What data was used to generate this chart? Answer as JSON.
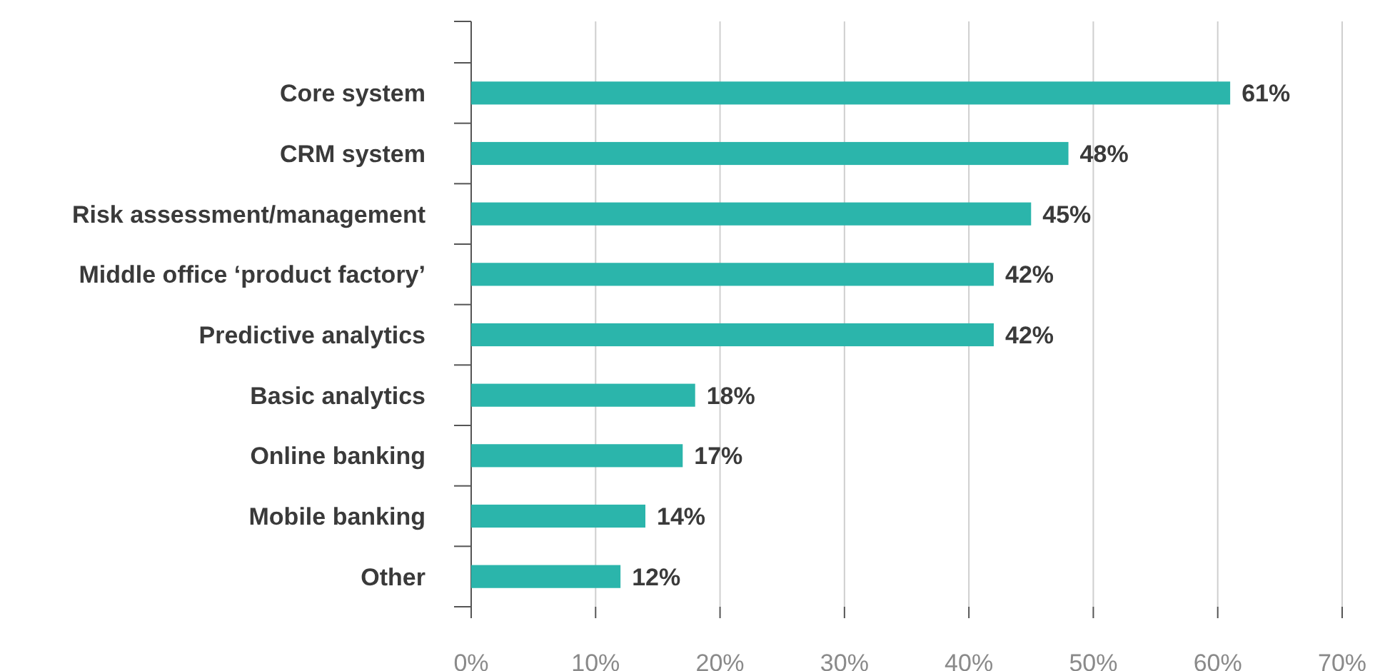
{
  "chart_data": {
    "type": "bar",
    "orientation": "horizontal",
    "categories": [
      "Core system",
      "CRM system",
      "Risk assessment/management",
      "Middle office ‘product factory’",
      "Predictive analytics",
      "Basic analytics",
      "Online banking",
      "Mobile banking",
      "Other"
    ],
    "values": [
      61,
      48,
      45,
      42,
      42,
      18,
      17,
      14,
      12
    ],
    "color": "#2bb5ab",
    "value_labels": [
      "61%",
      "48%",
      "45%",
      "42%",
      "42%",
      "18%",
      "17%",
      "14%",
      "12%"
    ],
    "xlim": [
      0,
      70
    ],
    "xticks": [
      {
        "value": 0,
        "label": "0%"
      },
      {
        "value": 10,
        "label": "10%"
      },
      {
        "value": 20,
        "label": "20%"
      },
      {
        "value": 30,
        "label": "30%"
      },
      {
        "value": 40,
        "label": "40%"
      },
      {
        "value": 50,
        "label": "50%"
      },
      {
        "value": 60,
        "label": "60%"
      },
      {
        "value": 70,
        "label": "70%"
      }
    ],
    "grid": "x"
  }
}
